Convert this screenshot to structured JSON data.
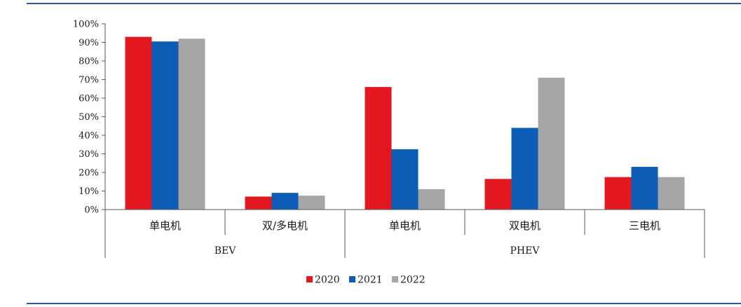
{
  "chart_data": {
    "type": "bar",
    "title": "",
    "xlabel": "",
    "ylabel": "",
    "ylim": [
      0,
      100
    ],
    "yticks": [
      "0%",
      "10%",
      "20%",
      "30%",
      "40%",
      "50%",
      "60%",
      "70%",
      "80%",
      "90%",
      "100%"
    ],
    "groups": [
      {
        "label": "BEV",
        "categories": [
          "单电机",
          "双/多电机"
        ]
      },
      {
        "label": "PHEV",
        "categories": [
          "单电机",
          "双电机",
          "三电机"
        ]
      }
    ],
    "categories": [
      "单电机",
      "双/多电机",
      "单电机",
      "双电机",
      "三电机"
    ],
    "series": [
      {
        "name": "2020",
        "color": "#e3171f",
        "values": [
          93,
          7,
          66,
          16.5,
          17.5
        ]
      },
      {
        "name": "2021",
        "color": "#0d5cb6",
        "values": [
          90.5,
          9,
          32.5,
          44,
          23
        ]
      },
      {
        "name": "2022",
        "color": "#a6a6a6",
        "values": [
          92,
          7.5,
          11,
          71,
          17.5
        ]
      }
    ],
    "grid": false,
    "legend_position": "bottom"
  }
}
